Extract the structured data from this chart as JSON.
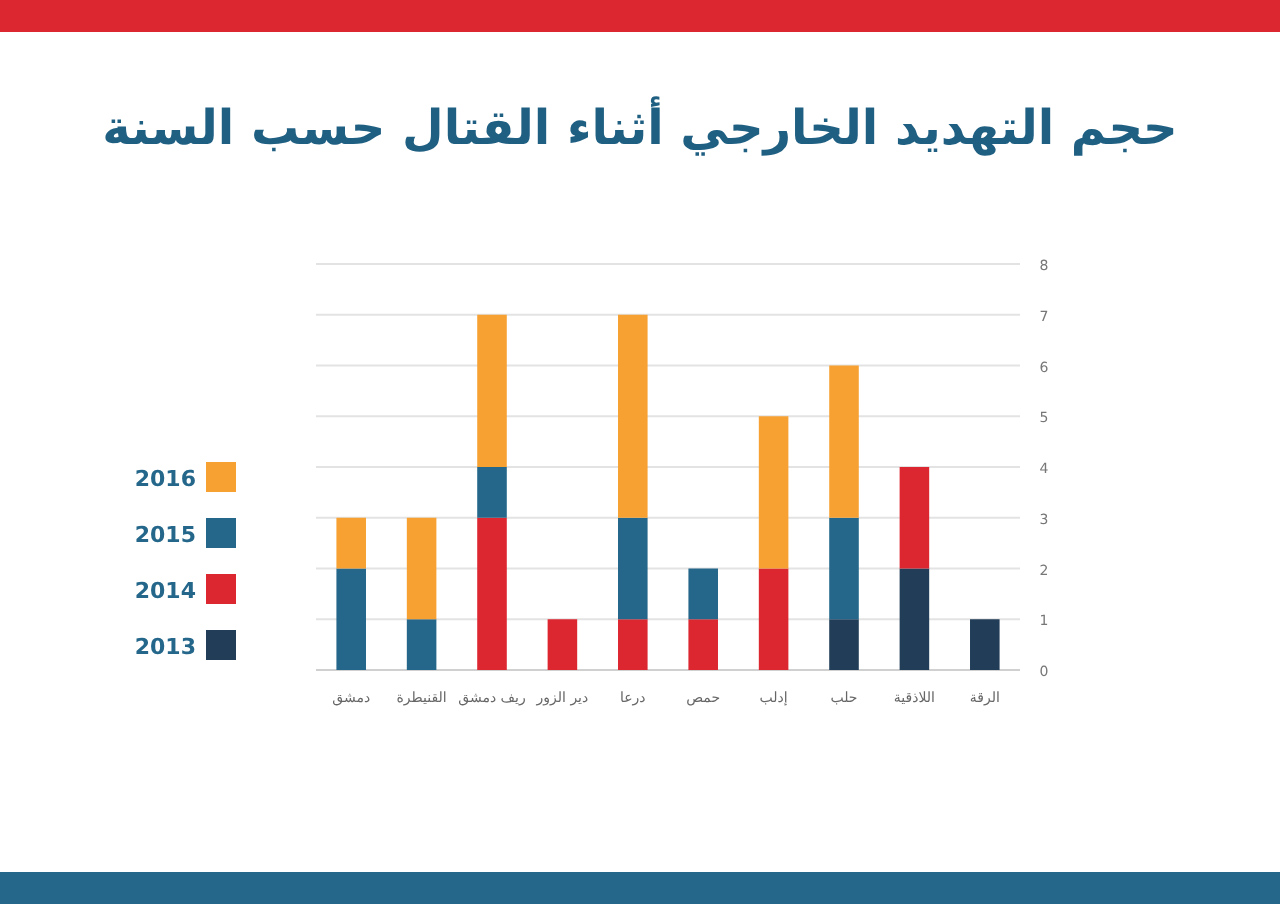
{
  "chart_data": {
    "type": "bar",
    "stacked": true,
    "title": "حجم التهديد الخارجي أثناء القتال حسب السنة",
    "categories": [
      "دمشق",
      "القنيطرة",
      "ريف دمشق",
      "دير الزور",
      "درعا",
      "حمص",
      "إدلب",
      "حلب",
      "اللاذقية",
      "الرقة"
    ],
    "series": [
      {
        "name": "2013",
        "color": "#213d58",
        "values": [
          0,
          0,
          0,
          0,
          0,
          0,
          0,
          1,
          2,
          1
        ]
      },
      {
        "name": "2014",
        "color": "#dc2630",
        "values": [
          0,
          0,
          3,
          1,
          1,
          1,
          2,
          0,
          2,
          0
        ]
      },
      {
        "name": "2015",
        "color": "#24678a",
        "values": [
          2,
          1,
          1,
          0,
          2,
          1,
          0,
          2,
          0,
          0
        ]
      },
      {
        "name": "2016",
        "color": "#f7a133",
        "values": [
          1,
          2,
          3,
          0,
          4,
          0,
          3,
          3,
          0,
          0
        ]
      }
    ],
    "ylim": [
      0,
      8
    ],
    "yticks": [
      0,
      1,
      2,
      3,
      4,
      5,
      6,
      7,
      8
    ],
    "grid": "y",
    "legend": "left"
  }
}
